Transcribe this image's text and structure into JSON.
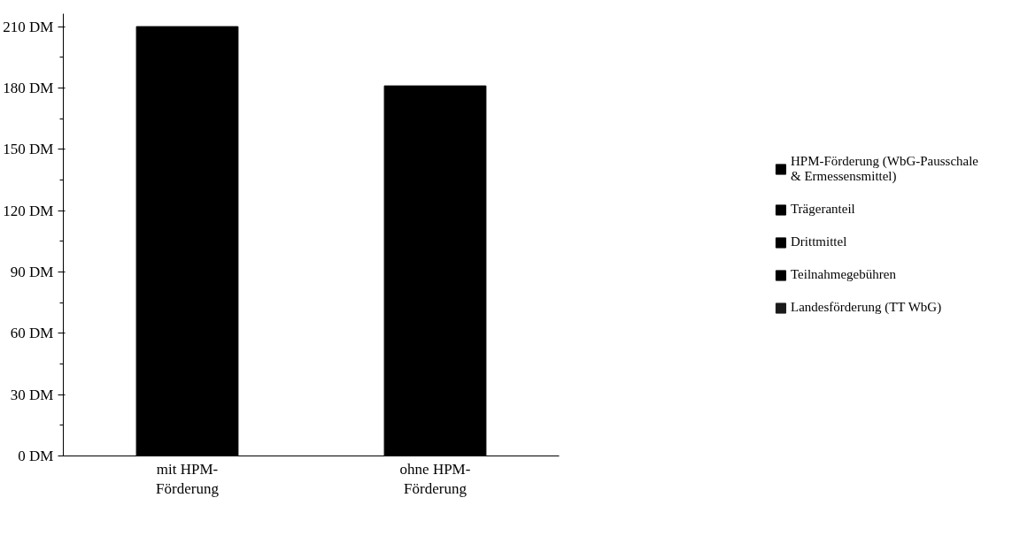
{
  "chart_data": {
    "type": "bar",
    "stacked": true,
    "categories": [
      "mit HPM-Förderung",
      "ohne HPM-Förderung"
    ],
    "series": [
      {
        "color": "#000000",
        "values": [
          210,
          181
        ]
      },
      {
        "name": "HPM-Förderung (WbG-Pausschale & Ermessensmittel)",
        "color": "#000000",
        "values": [
          null,
          null
        ]
      },
      {
        "name": "Trägeranteil",
        "color": "#000000",
        "values": [
          null,
          null
        ]
      },
      {
        "name": "Drittmittel",
        "color": "#000000",
        "values": [
          null,
          null
        ]
      },
      {
        "name": "Teilnahmegebühren",
        "color": "#000000",
        "values": [
          null,
          null
        ]
      },
      {
        "name": "Landesförderung (TT WbG)",
        "color": "#1a1a1a",
        "values": [
          null,
          null
        ]
      }
    ],
    "ylim": [
      0,
      210
    ],
    "yticks": [
      {
        "value": 0,
        "label": "0 DM"
      },
      {
        "value": 30,
        "label": "30 DM"
      },
      {
        "value": 60,
        "label": "60 DM"
      },
      {
        "value": 90,
        "label": "90 DM"
      },
      {
        "value": 120,
        "label": "120 DM"
      },
      {
        "value": 150,
        "label": "150 DM"
      },
      {
        "value": 180,
        "label": "180 DM"
      },
      {
        "value": 210,
        "label": "210 DM"
      }
    ],
    "grid": false,
    "legend": "right"
  }
}
